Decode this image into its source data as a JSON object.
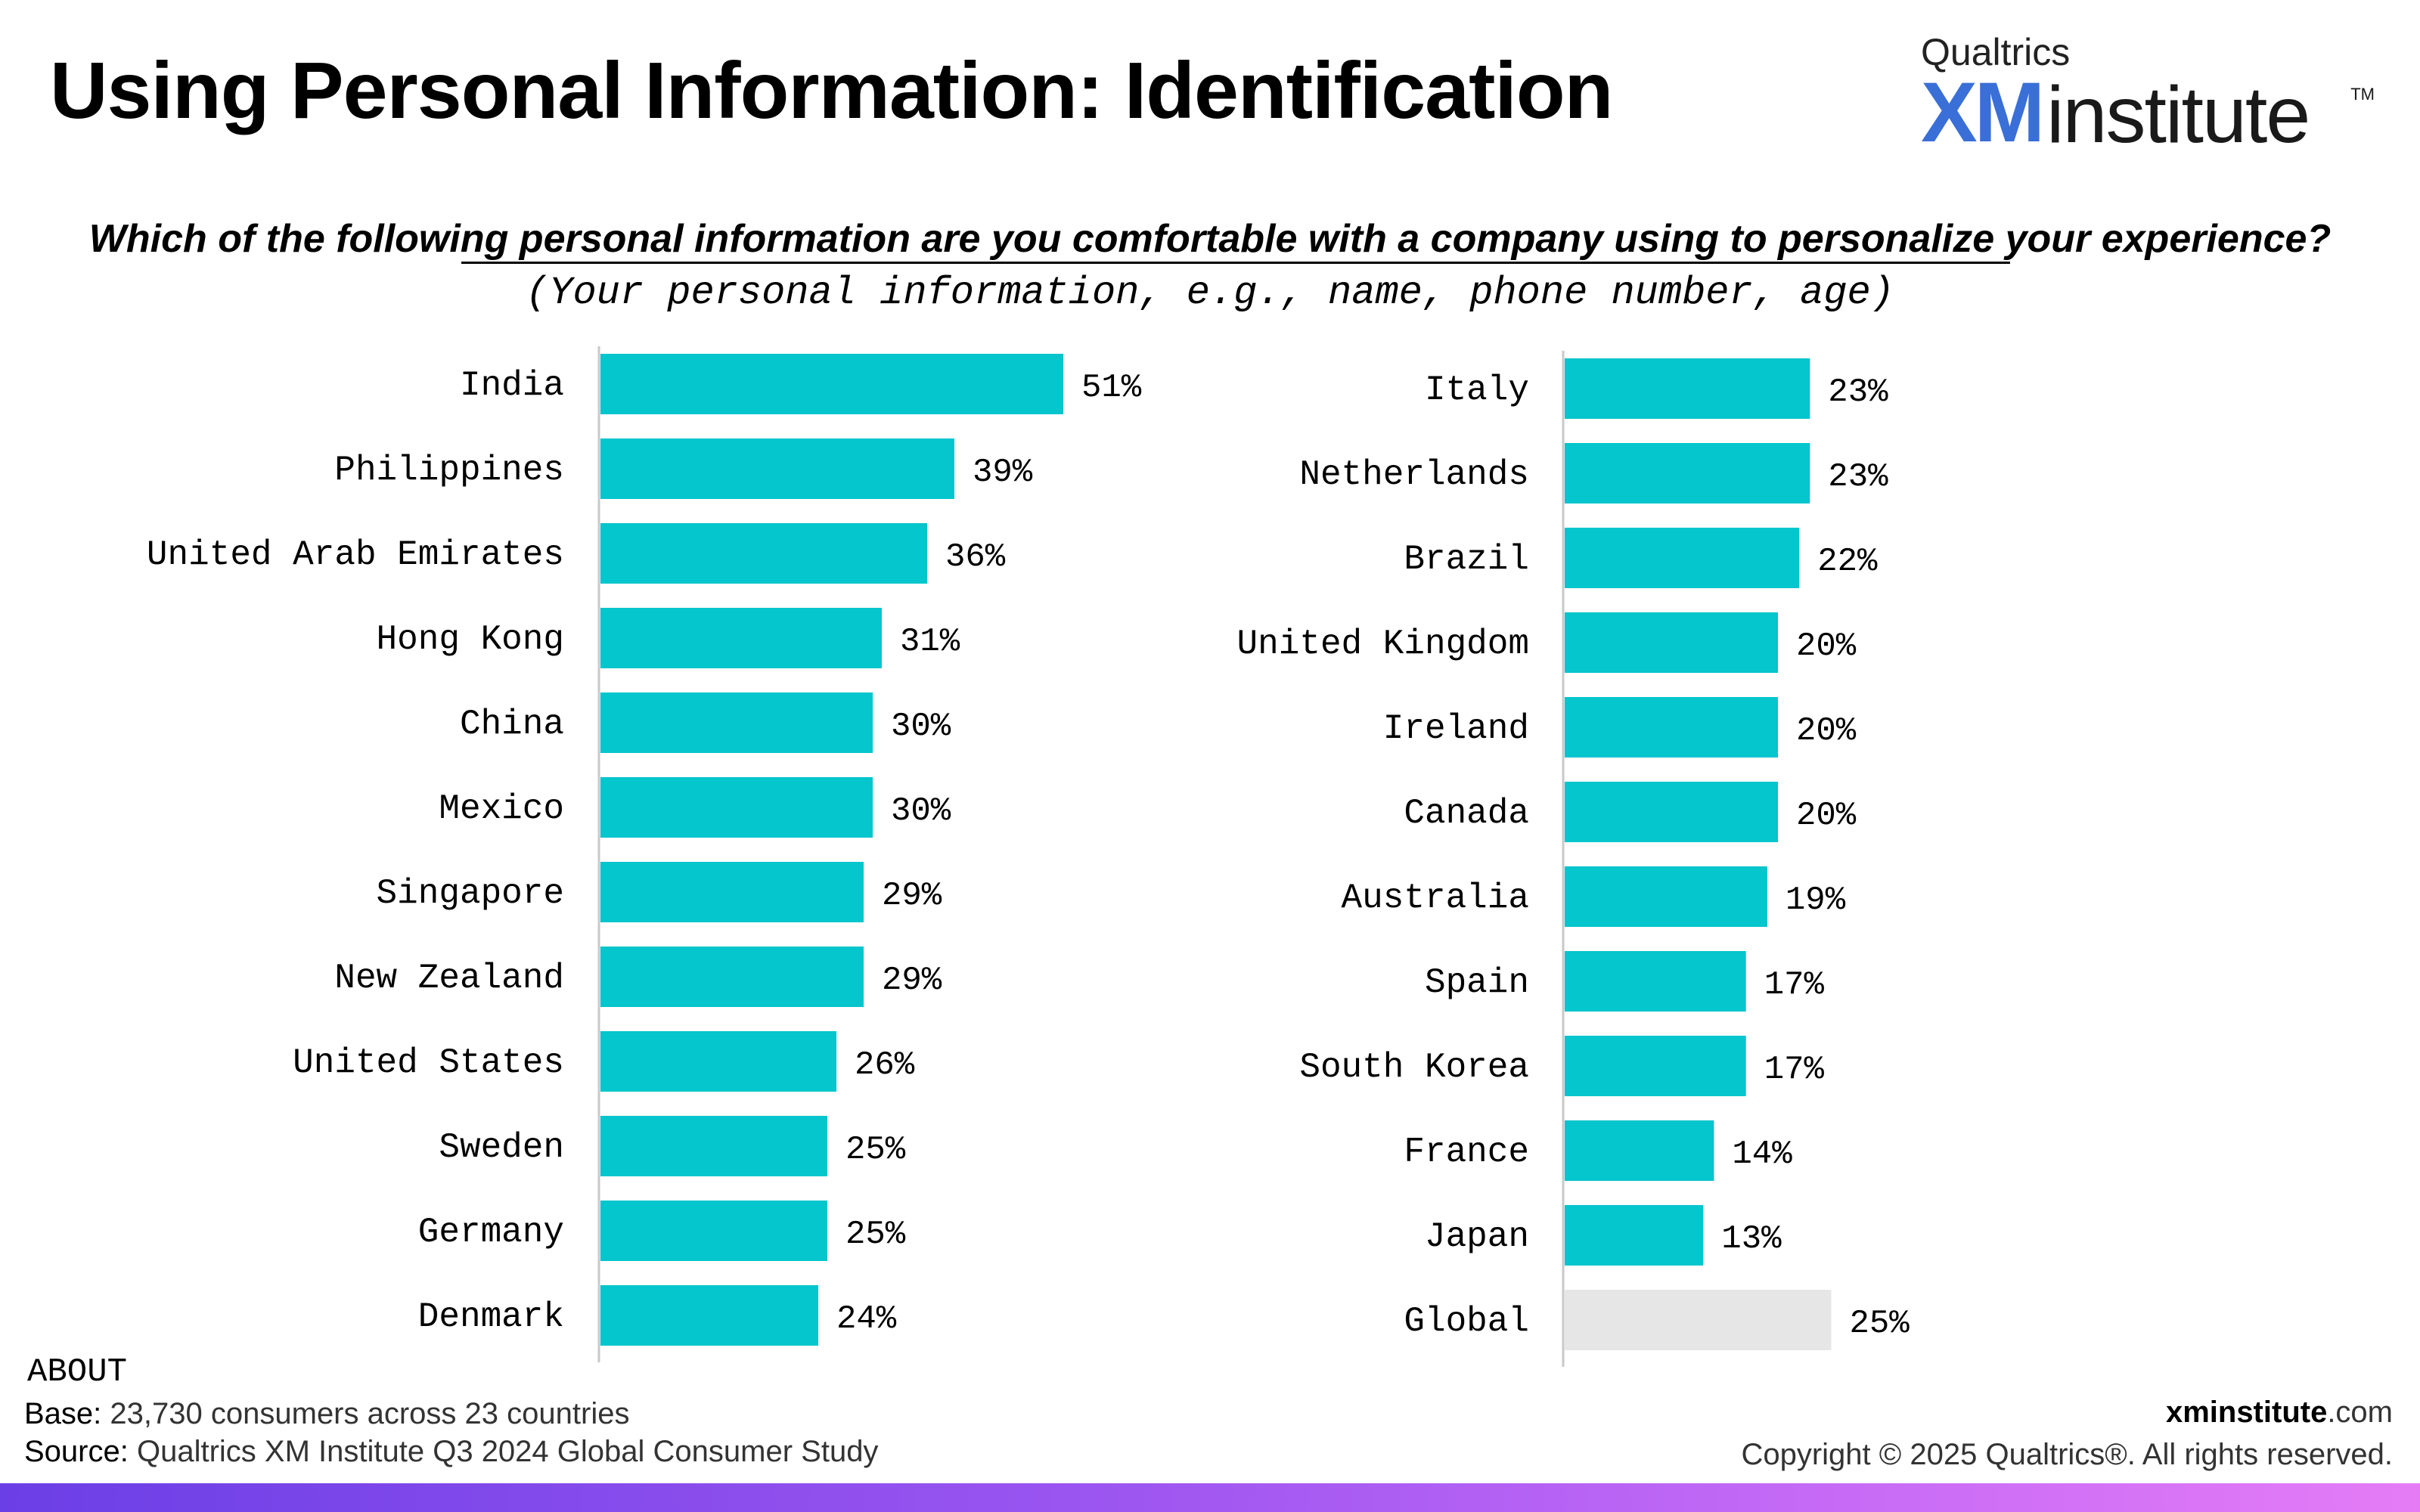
{
  "title": "Using Personal Information: Identification",
  "logo": {
    "brand": "Qualtrics",
    "xm": "XM",
    "institute": "institute",
    "tm": "TM"
  },
  "question": "Which of the following personal information are you comfortable with a company using to personalize your experience?",
  "subquestion": "(Your personal information, e.g., name, phone number, age)",
  "about": {
    "heading": "ABOUT",
    "base_label": "Base:",
    "base": "23,730 consumers across 23 countries",
    "source_label": "Source:",
    "source": "Qualtrics XM Institute Q3 2024 Global Consumer Study"
  },
  "footer": {
    "site_bold": "xminstitute",
    "site_rest": ".com",
    "copyright": "Copyright © 2025 Qualtrics®. All rights reserved."
  },
  "colors": {
    "bar": "#05c5cd",
    "global_bar": "#e6e6e6",
    "axis": "#c8c8c8"
  },
  "chart_data": [
    {
      "type": "bar",
      "orientation": "horizontal",
      "categories": [
        "India",
        "Philippines",
        "United Arab Emirates",
        "Hong Kong",
        "China",
        "Mexico",
        "Singapore",
        "New Zealand",
        "United States",
        "Sweden",
        "Germany",
        "Denmark"
      ],
      "values": [
        51,
        39,
        36,
        31,
        30,
        30,
        29,
        29,
        26,
        25,
        25,
        24
      ],
      "labels": [
        "51%",
        "39%",
        "36%",
        "31%",
        "30%",
        "30%",
        "29%",
        "29%",
        "26%",
        "25%",
        "25%",
        "24%"
      ]
    },
    {
      "type": "bar",
      "orientation": "horizontal",
      "categories": [
        "Italy",
        "Netherlands",
        "Brazil",
        "United Kingdom",
        "Ireland",
        "Canada",
        "Australia",
        "Spain",
        "South Korea",
        "France",
        "Japan",
        "Global"
      ],
      "values": [
        23,
        23,
        22,
        20,
        20,
        20,
        19,
        17,
        17,
        14,
        13,
        25
      ],
      "labels": [
        "23%",
        "23%",
        "22%",
        "20%",
        "20%",
        "20%",
        "19%",
        "17%",
        "17%",
        "14%",
        "13%",
        "25%"
      ],
      "highlight": "Global"
    }
  ]
}
